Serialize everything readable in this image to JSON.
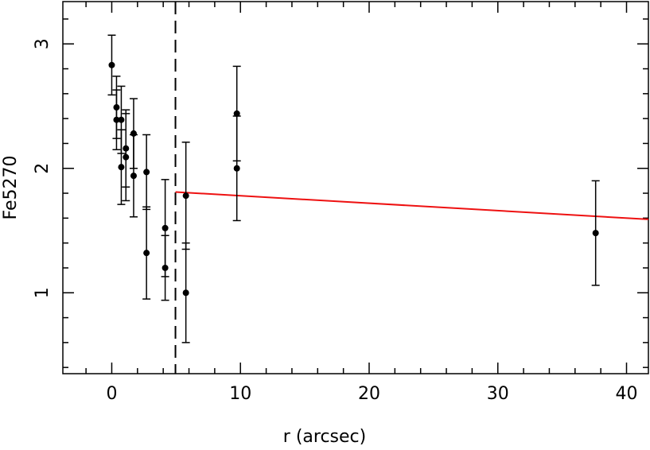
{
  "chart_data": {
    "type": "scatter",
    "x_label": "r (arcsec)",
    "y_label": "Fe5270",
    "xlim": [
      -3.8,
      41.7
    ],
    "ylim": [
      0.35,
      3.34
    ],
    "xticks": [
      0,
      10,
      20,
      30,
      40
    ],
    "yticks": [
      1,
      2,
      3
    ],
    "xminorticks": [
      -2,
      2,
      4,
      6,
      8,
      12,
      14,
      16,
      18,
      22,
      24,
      26,
      28,
      32,
      34,
      36,
      38
    ],
    "yminorticks": [
      0.4,
      0.6,
      0.8,
      1.2,
      1.4,
      1.6,
      1.8,
      2.2,
      2.4,
      2.6,
      2.8,
      3.2
    ],
    "color": "#000000",
    "x": [
      0,
      0.37,
      0.37,
      0.74,
      0.74,
      1.1,
      1.1,
      1.7,
      1.7,
      2.7,
      2.7,
      4.15,
      4.15,
      5.76,
      5.76,
      9.72,
      9.72,
      37.6
    ],
    "y": [
      2.83,
      2.49,
      2.39,
      2.39,
      2.01,
      2.16,
      2.09,
      2.28,
      1.94,
      1.97,
      1.32,
      1.52,
      1.2,
      1.78,
      1.0,
      2.44,
      2.0,
      1.48
    ],
    "yerr": [
      0.24,
      0.25,
      0.24,
      0.27,
      0.3,
      0.31,
      0.35,
      0.28,
      0.33,
      0.3,
      0.37,
      0.39,
      0.26,
      0.43,
      0.4,
      0.38,
      0.42,
      0.42
    ],
    "vline": 4.95,
    "fit": {
      "color": "#ee1111",
      "x": [
        4.95,
        41.7
      ],
      "y": [
        1.81,
        1.59
      ]
    }
  }
}
